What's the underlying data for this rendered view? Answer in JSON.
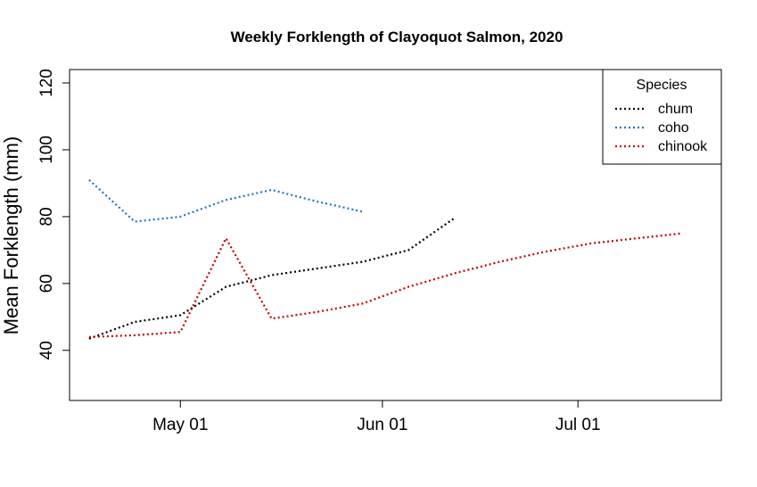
{
  "chart_data": {
    "type": "line",
    "title": "Weekly Forklength of Clayoquot Salmon, 2020",
    "xlabel": "",
    "ylabel": "Mean Forklength (mm)",
    "x_ticks": [
      {
        "date": "2020-05-01",
        "label": "May 01"
      },
      {
        "date": "2020-06-01",
        "label": "Jun 01"
      },
      {
        "date": "2020-07-01",
        "label": "Jul 01"
      }
    ],
    "y_ticks": [
      40,
      60,
      80,
      100,
      120
    ],
    "xlim": [
      "2020-04-14",
      "2020-07-23"
    ],
    "ylim": [
      25,
      124
    ],
    "grid": false,
    "legend": {
      "title": "Species",
      "position": "top-right"
    },
    "series": [
      {
        "name": "chum",
        "color": "#000000",
        "x": [
          "2020-04-17",
          "2020-04-24",
          "2020-05-01",
          "2020-05-08",
          "2020-05-15",
          "2020-05-22",
          "2020-05-29",
          "2020-06-05",
          "2020-06-12"
        ],
        "y": [
          43.5,
          48.5,
          50.5,
          59,
          62.5,
          64.5,
          66.5,
          70,
          79.5
        ]
      },
      {
        "name": "coho",
        "color": "#1f78b4",
        "x": [
          "2020-04-17",
          "2020-04-24",
          "2020-05-01",
          "2020-05-08",
          "2020-05-15",
          "2020-05-22",
          "2020-05-29"
        ],
        "y": [
          91,
          78.5,
          80,
          85,
          88,
          84.5,
          81.5
        ]
      },
      {
        "name": "chinook",
        "color": "#c00000",
        "x": [
          "2020-04-17",
          "2020-04-24",
          "2020-05-01",
          "2020-05-08",
          "2020-05-15",
          "2020-05-22",
          "2020-05-29",
          "2020-06-05",
          "2020-06-12",
          "2020-06-19",
          "2020-06-26",
          "2020-07-03",
          "2020-07-10",
          "2020-07-17"
        ],
        "y": [
          44,
          44.5,
          45.5,
          73.5,
          49.5,
          51.5,
          54,
          59,
          63,
          66.5,
          69.5,
          72,
          73.5,
          75
        ]
      }
    ]
  }
}
